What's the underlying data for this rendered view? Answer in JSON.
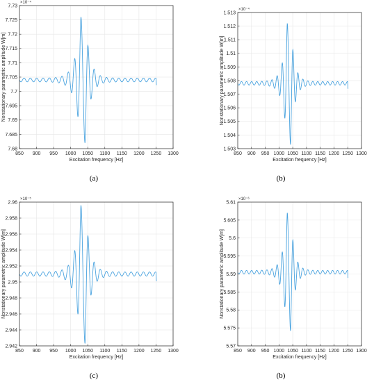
{
  "figure": {
    "panel_labels": [
      "(a)",
      "(b)",
      "(c)",
      "(b)"
    ]
  },
  "chart_data": [
    {
      "type": "line",
      "panel": "(a)",
      "xlabel": "Excitation frequency [Hz]",
      "ylabel": "Nonstationary parametric amplitude W[m]",
      "exponent_label": "×10⁻⁴",
      "xlim": [
        850,
        1300
      ],
      "ylim": [
        7.68,
        7.73
      ],
      "xticks": [
        "850",
        "900",
        "950",
        "1000",
        "1050",
        "1100",
        "1150",
        "1200",
        "1250",
        "1300"
      ],
      "yticks": [
        "7.68",
        "7.685",
        "7.69",
        "7.695",
        "7.7",
        "7.705",
        "7.71",
        "7.715",
        "7.72",
        "7.725",
        "7.73"
      ],
      "line_color": "#4aa3df",
      "grid": true,
      "series": [
        {
          "x": [
            850,
            1000,
            1030,
            1042,
            1055,
            1250
          ],
          "y": [
            7.7035,
            7.706,
            7.726,
            7.682,
            7.6985,
            7.7022
          ],
          "base": 7.704,
          "peak_max": 7.726,
          "peak_min": 7.682,
          "peak_x": 1030,
          "min_x": 1042
        }
      ]
    },
    {
      "type": "line",
      "panel": "(b)",
      "xlabel": "Excitation frequency [Hz]",
      "ylabel": "Nonstationary parametric amplitude W[m]",
      "exponent_label": "×10⁻⁴",
      "xlim": [
        850,
        1300
      ],
      "ylim": [
        1.503,
        1.513
      ],
      "xticks": [
        "850",
        "900",
        "950",
        "1000",
        "1050",
        "1100",
        "1150",
        "1200",
        "1250",
        "1300"
      ],
      "yticks": [
        "1.503",
        "1.504",
        "1.505",
        "1.506",
        "1.507",
        "1.508",
        "1.509",
        "1.51",
        "1.511",
        "1.512",
        "1.513"
      ],
      "line_color": "#4aa3df",
      "grid": true,
      "series": [
        {
          "x": [
            850,
            1000,
            1030,
            1042,
            1055,
            1250
          ],
          "y": [
            1.5077,
            1.508,
            1.5122,
            1.5033,
            1.5068,
            1.5074
          ],
          "base": 1.5078,
          "peak_max": 1.5122,
          "peak_min": 1.5033,
          "peak_x": 1030,
          "min_x": 1042
        }
      ]
    },
    {
      "type": "line",
      "panel": "(c)",
      "xlabel": "Excitation frequency [Hz]",
      "ylabel": "Nonstationary parametric amplitude W[m]",
      "exponent_label": "×10⁻⁵",
      "xlim": [
        850,
        1300
      ],
      "ylim": [
        2.942,
        2.96
      ],
      "xticks": [
        "850",
        "900",
        "950",
        "1000",
        "1050",
        "1100",
        "1150",
        "1200",
        "1250",
        "1300"
      ],
      "yticks": [
        "2.942",
        "2.944",
        "2.946",
        "2.948",
        "2.95",
        "2.952",
        "2.954",
        "2.956",
        "2.958",
        "2.96"
      ],
      "line_color": "#4aa3df",
      "grid": true,
      "series": [
        {
          "x": [
            850,
            1000,
            1030,
            1042,
            1055,
            1250
          ],
          "y": [
            2.951,
            2.952,
            2.9596,
            2.9423,
            2.9485,
            2.9501
          ],
          "base": 2.951,
          "peak_max": 2.9596,
          "peak_min": 2.9423,
          "peak_x": 1030,
          "min_x": 1042
        }
      ]
    },
    {
      "type": "line",
      "panel": "(b)",
      "xlabel": "Excitation frequency [Hz]",
      "ylabel": "Nonstationary parametric amplitude W[m]",
      "exponent_label": "×10⁻⁶",
      "xlim": [
        850,
        1300
      ],
      "ylim": [
        5.57,
        5.61
      ],
      "xticks": [
        "850",
        "900",
        "950",
        "1000",
        "1050",
        "1100",
        "1150",
        "1200",
        "1250",
        "1300"
      ],
      "yticks": [
        "5.57",
        "5.575",
        "5.58",
        "5.585",
        "5.59",
        "5.595",
        "5.6",
        "5.605",
        "5.61"
      ],
      "line_color": "#4aa3df",
      "grid": true,
      "series": [
        {
          "x": [
            850,
            1000,
            1030,
            1042,
            1055,
            1250
          ],
          "y": [
            5.5905,
            5.592,
            5.607,
            5.5742,
            5.5868,
            5.5889
          ],
          "base": 5.5905,
          "peak_max": 5.607,
          "peak_min": 5.5742,
          "peak_x": 1030,
          "min_x": 1042
        }
      ]
    }
  ]
}
